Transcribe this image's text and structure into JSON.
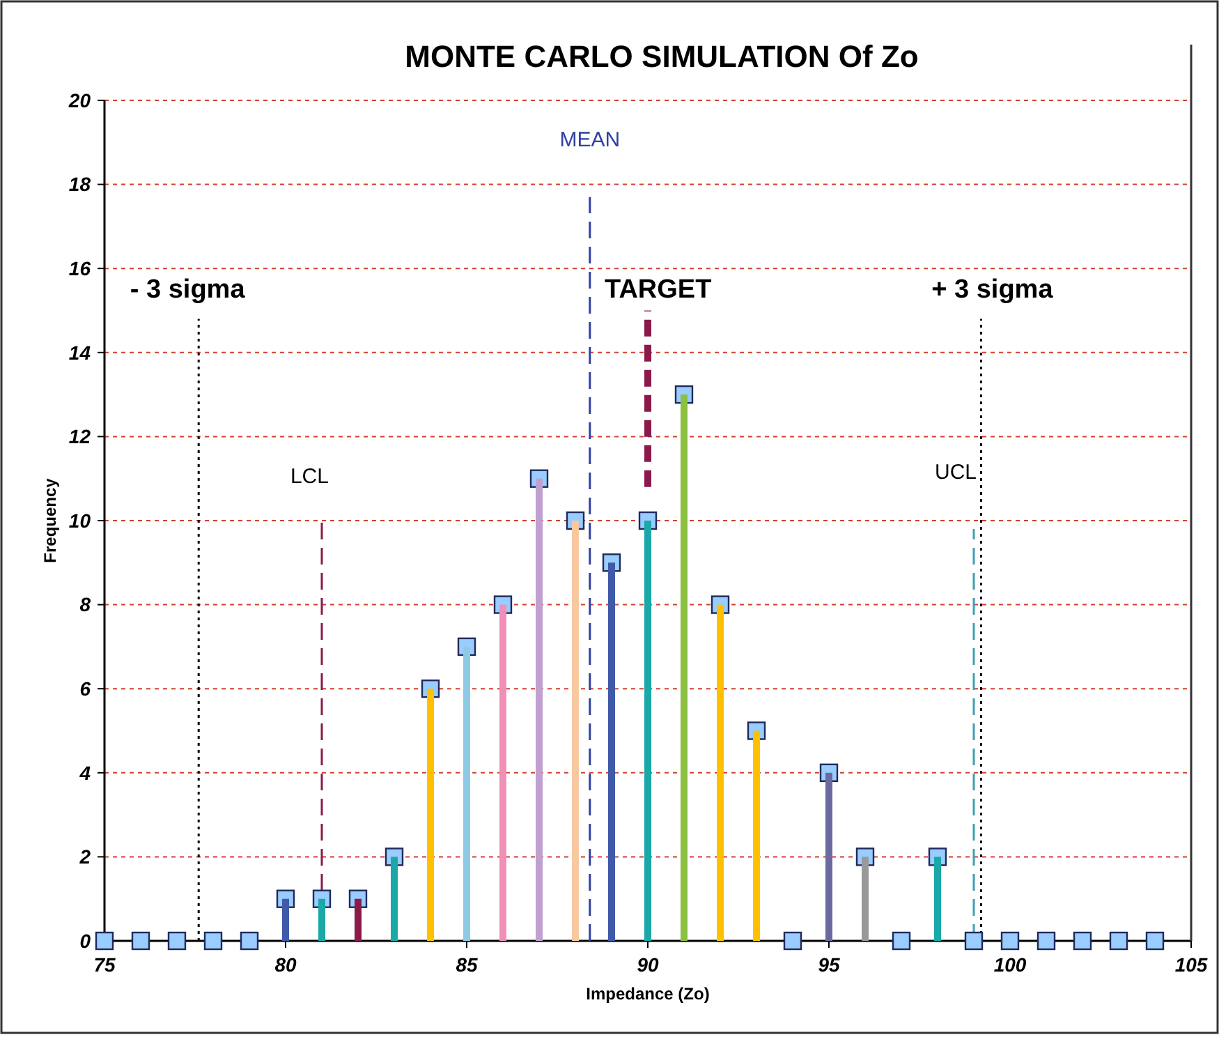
{
  "chart_data": {
    "type": "bar",
    "title": "MONTE CARLO SIMULATION Of Zo",
    "xlabel": "Impedance (Zo)",
    "ylabel": "Frequency",
    "x": [
      75,
      76,
      77,
      78,
      79,
      80,
      81,
      82,
      83,
      84,
      85,
      86,
      87,
      88,
      89,
      90,
      91,
      92,
      93,
      94,
      95,
      96,
      97,
      98,
      99,
      100,
      101,
      102,
      103,
      104
    ],
    "series": [
      {
        "colors": [
          "#999999",
          "#999999",
          "#999999",
          "#999999",
          "#999999",
          "#3f5aa8",
          "#1aa8a8",
          "#8b1a4a",
          "#1aa8a8",
          "#ffc000",
          "#8ecae6",
          "#f090b8",
          "#c0a0d0",
          "#f8c8a0",
          "#3f5aa8",
          "#1aa8a8",
          "#8cc040",
          "#ffc000",
          "#ffc000",
          "#999999",
          "#6a6aa0",
          "#999999",
          "#999999",
          "#1aa8a8",
          "#999999",
          "#999999",
          "#999999",
          "#999999",
          "#999999",
          "#999999"
        ],
        "values": [
          0,
          0,
          0,
          0,
          0,
          1,
          1,
          1,
          2,
          6,
          7,
          8,
          11,
          10,
          9,
          10,
          13,
          8,
          5,
          0,
          4,
          2,
          0,
          2,
          0,
          0,
          0,
          0,
          0,
          0
        ]
      },
      {
        "type": "scatter",
        "color": "#99ccff",
        "marker": "square",
        "values": [
          0,
          0,
          0,
          0,
          0,
          1,
          1,
          1,
          2,
          6,
          7,
          8,
          11,
          10,
          9,
          10,
          13,
          8,
          5,
          0,
          4,
          2,
          0,
          2,
          0,
          0,
          0,
          0,
          0,
          0
        ]
      }
    ],
    "xlim": [
      75,
      105
    ],
    "xticks": [
      75,
      80,
      85,
      90,
      95,
      100,
      105
    ],
    "ylim": [
      0,
      20
    ],
    "yticks": [
      0,
      2,
      4,
      6,
      8,
      10,
      12,
      14,
      16,
      18,
      20
    ],
    "grid": "y",
    "ref_lines": [
      {
        "axis": "x",
        "value": 88.4,
        "label": "MEAN",
        "color": "#3040a0",
        "line_style": "dashed"
      },
      {
        "axis": "x",
        "value": 90,
        "label": "TARGET",
        "color": "#8b1a4a",
        "line_style": "dashed"
      },
      {
        "axis": "x",
        "value": 81,
        "label": "LCL",
        "color": "#8b1a4a",
        "line_style": "dashed"
      },
      {
        "axis": "x",
        "value": 99,
        "label": "UCL",
        "color": "#40a0b0",
        "line_style": "dashed"
      },
      {
        "axis": "x",
        "value": 77.6,
        "label": "- 3 sigma",
        "color": "#000000",
        "line_style": "dotted"
      },
      {
        "axis": "x",
        "value": 99.2,
        "label": "+ 3 sigma",
        "color": "#000000",
        "line_style": "dotted"
      }
    ]
  }
}
